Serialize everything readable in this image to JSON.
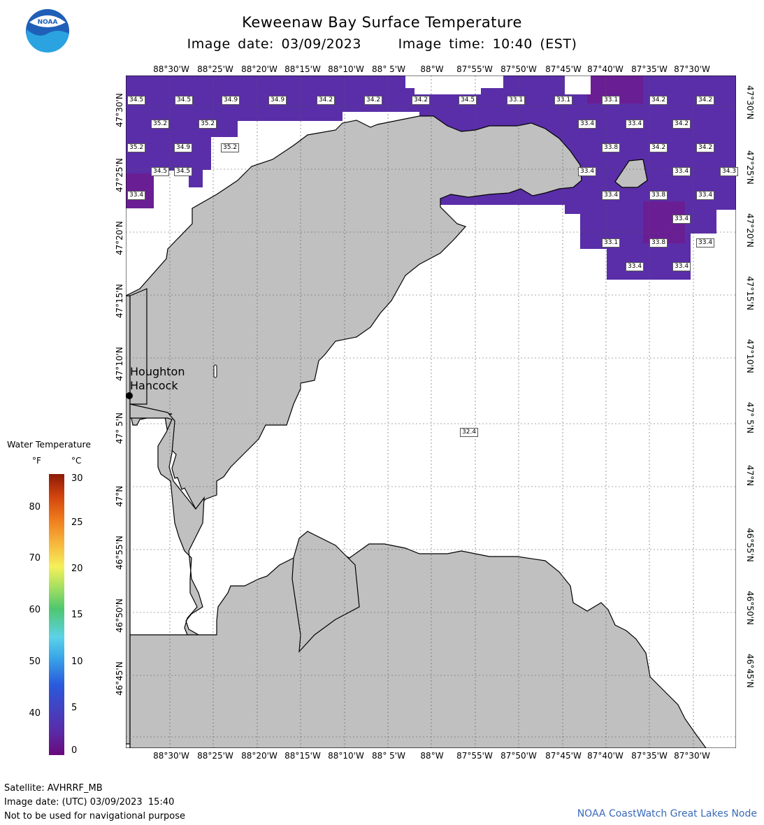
{
  "header": {
    "title": "Keweenaw Bay Surface Temperature",
    "subtitle": "Image date: 03/09/2023     Image time: 10:40 (EST)",
    "logo_text": "NOAA"
  },
  "axes": {
    "lon_labels": [
      "88°30'W",
      "88°25'W",
      "88°20'W",
      "88°15'W",
      "88°10'W",
      "88° 5'W",
      "88°W",
      "87°55'W",
      "87°50'W",
      "87°45'W",
      "87°40'W",
      "87°35'W",
      "87°30'W"
    ],
    "lat_labels": [
      "47°30'N",
      "47°25'N",
      "47°20'N",
      "47°15'N",
      "47°10'N",
      "47° 5'N",
      "47°N",
      "46°55'N",
      "46°50'N",
      "46°45'N"
    ]
  },
  "places": [
    {
      "name": "Houghton"
    },
    {
      "name": "Hancock"
    }
  ],
  "temperature_labels": [
    "34.5",
    "34.5",
    "34.9",
    "34.9",
    "34.2",
    "34.2",
    "34.2",
    "34.5",
    "33.1",
    "33.1",
    "33.1",
    "34.2",
    "34.2",
    "35.2",
    "35.2",
    "33.4",
    "33.4",
    "34.2",
    "34.5",
    "35.2",
    "34.9",
    "35.2",
    "33.8",
    "34.2",
    "34.2",
    "34.5",
    "33.4",
    "33.4",
    "34.3",
    "33.4",
    "33.4",
    "33.8",
    "33.4",
    "33.4",
    "33.1",
    "33.8",
    "33.4",
    "33.4",
    "33.4",
    "32.4"
  ],
  "legend": {
    "title": "Water Temperature",
    "unit_f": "°F",
    "unit_c": "°C",
    "f_ticks": [
      "80",
      "70",
      "60",
      "50",
      "40"
    ],
    "c_ticks": [
      "30",
      "25",
      "20",
      "15",
      "10",
      "5",
      "0"
    ]
  },
  "footer": {
    "satellite": "Satellite: AVHRRF_MB",
    "utc_date": "Image date: (UTC) 03/09/2023  15:40",
    "disclaimer": "Not to be used for navigational purpose",
    "credit": "NOAA CoastWatch Great Lakes Node"
  },
  "colors": {
    "land": "#c0c0c0",
    "water_temp_fill": "#5c2aa0",
    "credit_text": "#3a6ab8"
  }
}
